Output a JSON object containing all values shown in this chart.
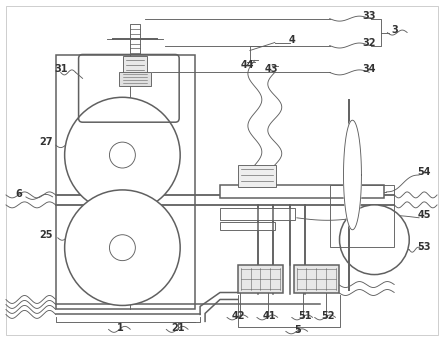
{
  "bg_color": "#ffffff",
  "lc": "#606060",
  "lw": 1.1,
  "tlw": 0.65,
  "fs": 7.0,
  "border_color": "#aaaaaa"
}
